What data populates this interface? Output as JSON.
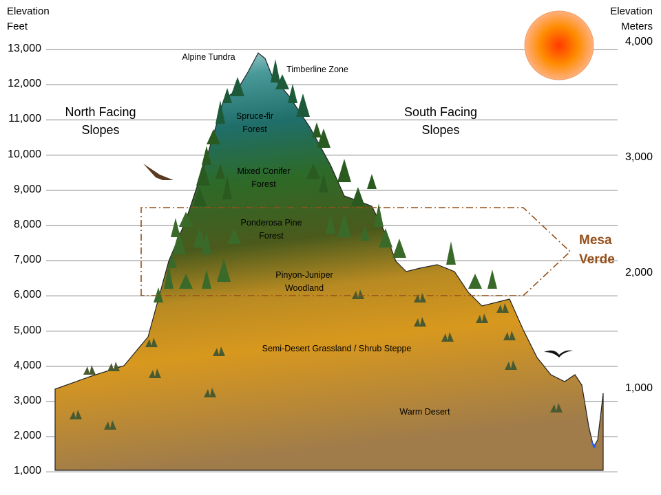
{
  "left_axis": {
    "title_line1": "Elevation",
    "title_line2": "Feet",
    "ticks": [
      "13,000",
      "12,000",
      "11,000",
      "10,000",
      "9,000",
      "8,000",
      "7,000",
      "6,000",
      "5,000",
      "4,000",
      "3,000",
      "2,000",
      "1,000"
    ]
  },
  "right_axis": {
    "title_line1": "Elevation",
    "title_line2": "Meters",
    "ticks": [
      "4,000",
      "3,000",
      "2,000",
      "1,000"
    ]
  },
  "slopes": {
    "north": {
      "line1": "North Facing",
      "line2": "Slopes"
    },
    "south": {
      "line1": "South Facing",
      "line2": "Slopes"
    }
  },
  "zones": {
    "alpine": "Alpine Tundra",
    "timberline": "Timberline Zone",
    "spruce": {
      "line1": "Spruce-fir",
      "line2": "Forest"
    },
    "mixed": {
      "line1": "Mixed Conifer",
      "line2": "Forest"
    },
    "ponderosa": {
      "line1": "Ponderosa Pine",
      "line2": "Forest"
    },
    "pinyon": {
      "line1": "Pinyon-Juniper",
      "line2": "Woodland"
    },
    "semidesert": "Semi-Desert Grassland / Shrub Steppe",
    "warm": "Warm Desert"
  },
  "mesa_verde": {
    "line1": "Mesa",
    "line2": "Verde",
    "color": "#96501a"
  },
  "colors": {
    "grid": "#808080",
    "alpine": "#c8e6e6",
    "spruce": "#1f7070",
    "forest": "#2e6a2a",
    "woodland": "#5a5a1e",
    "grassland": "#d8981e",
    "desert": "#a8834a",
    "sun": "#ff4000"
  }
}
